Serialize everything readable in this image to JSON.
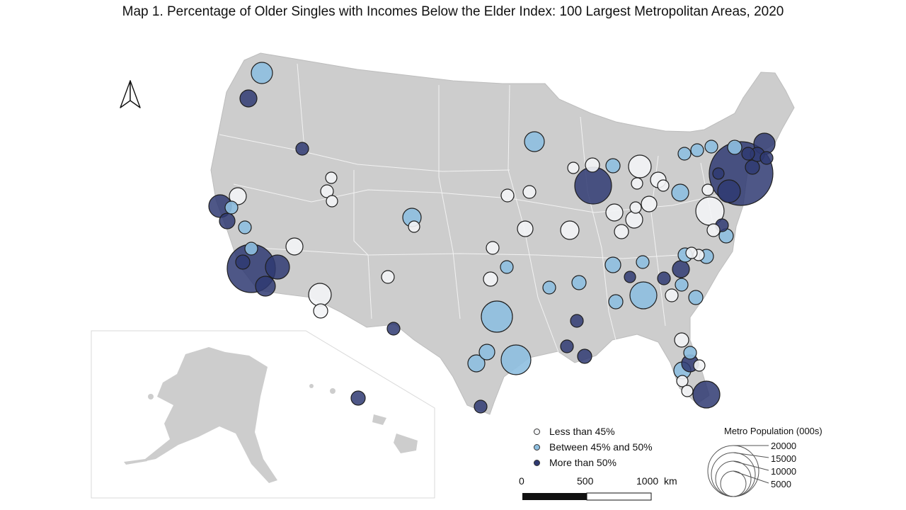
{
  "title": "Map 1. Percentage of Older Singles with Incomes Below the Elder Index: 100  Largest Metropolitan Areas, 2020",
  "colors": {
    "land": "#cdcdcd",
    "low": "#f3f4f6",
    "mid": "#8ebfe0",
    "high": "#2f3a72",
    "stroke": "#1f1f1f"
  },
  "legend": {
    "categories": [
      {
        "key": "low",
        "label": "Less than 45%"
      },
      {
        "key": "mid",
        "label": "Between 45% and 50%"
      },
      {
        "key": "high",
        "label": "More than 50%"
      }
    ],
    "size_title": "Metro Population (000s)",
    "size_labels": [
      "20000",
      "15000",
      "10000",
      "5000"
    ]
  },
  "scale_bar": {
    "labels": [
      "0",
      "500",
      "1000"
    ],
    "unit": "km"
  },
  "north_arrow": "north-arrow-icon"
}
